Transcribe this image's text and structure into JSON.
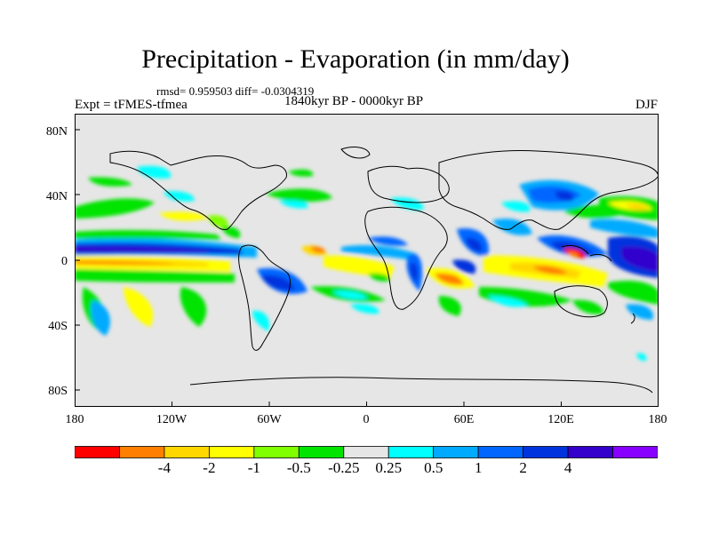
{
  "title": "Precipitation - Evaporation (in mm/day)",
  "stats": "rmsd= 0.959503 diff= -0.0304319",
  "experiment": "Expt = tFMES-tfmea",
  "period": "1840kyr BP - 0000kyr BP",
  "season": "DJF",
  "lat_labels": [
    "80N",
    "40N",
    "0",
    "40S",
    "80S"
  ],
  "lon_labels": [
    "180",
    "120W",
    "60W",
    "0",
    "60E",
    "120E",
    "180"
  ],
  "colorbar": {
    "colors": [
      "#ff0000",
      "#ff8000",
      "#ffd700",
      "#ffff00",
      "#80ff00",
      "#00e400",
      "#e6e6e6",
      "#00ffff",
      "#00aaff",
      "#0066ff",
      "#0033dd",
      "#3300cc",
      "#8800ff"
    ],
    "labels": [
      "-4",
      "-2",
      "-1",
      "-0.5",
      "-0.25",
      "0.25",
      "0.5",
      "1",
      "2",
      "4"
    ]
  }
}
